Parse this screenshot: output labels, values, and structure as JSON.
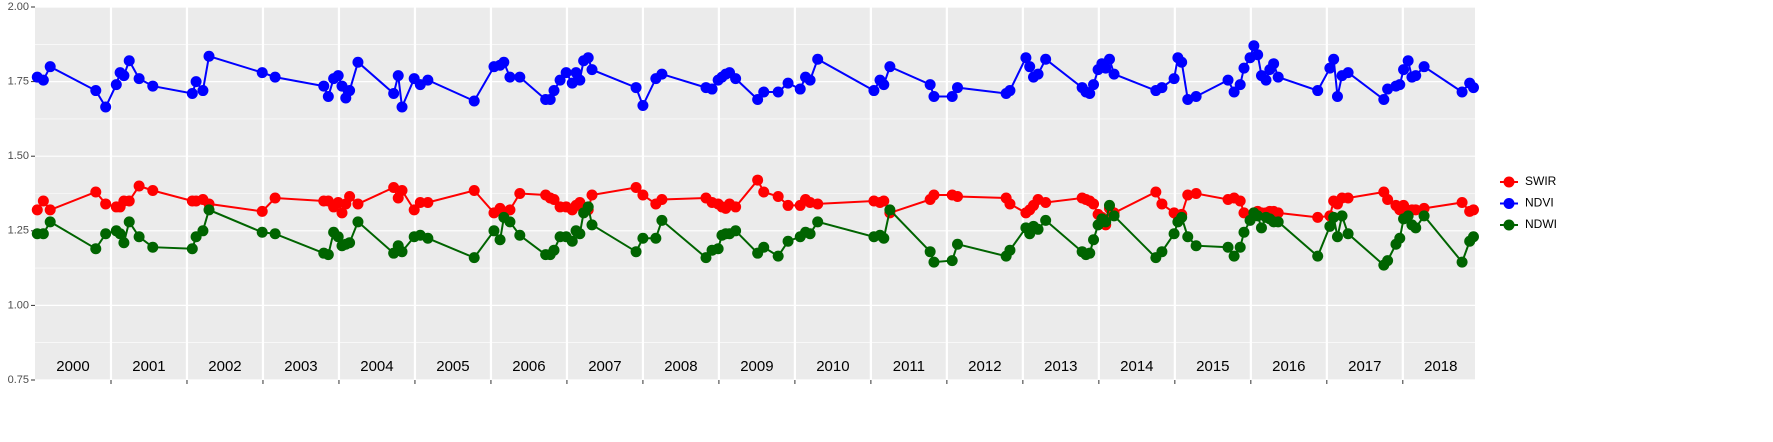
{
  "chart_data": {
    "type": "line",
    "x": [
      2000.03,
      2000.11,
      2000.2,
      2000.8,
      2000.93,
      2001.07,
      2001.12,
      2001.17,
      2001.24,
      2001.37,
      2001.55,
      2002.07,
      2002.12,
      2002.21,
      2002.29,
      2002.99,
      2003.16,
      2003.8,
      2003.86,
      2003.93,
      2003.99,
      2004.04,
      2004.09,
      2004.14,
      2004.25,
      2004.72,
      2004.78,
      2004.83,
      2004.99,
      2005.07,
      2005.17,
      2005.78,
      2006.04,
      2006.12,
      2006.17,
      2006.25,
      2006.38,
      2006.72,
      2006.78,
      2006.83,
      2006.91,
      2006.99,
      2007.07,
      2007.12,
      2007.17,
      2007.22,
      2007.28,
      2007.33,
      2007.91,
      2008.0,
      2008.17,
      2008.25,
      2008.83,
      2008.91,
      2008.99,
      2009.04,
      2009.09,
      2009.14,
      2009.22,
      2009.51,
      2009.59,
      2009.78,
      2009.91,
      2010.07,
      2010.14,
      2010.2,
      2010.3,
      2011.04,
      2011.12,
      2011.17,
      2011.25,
      2011.78,
      2011.83,
      2012.07,
      2012.14,
      2012.78,
      2012.83,
      2013.04,
      2013.09,
      2013.14,
      2013.2,
      2013.3,
      2013.78,
      2013.83,
      2013.88,
      2013.93,
      2013.99,
      2014.04,
      2014.09,
      2014.14,
      2014.2,
      2014.75,
      2014.83,
      2014.99,
      2015.04,
      2015.09,
      2015.17,
      2015.28,
      2015.7,
      2015.78,
      2015.86,
      2015.91,
      2015.99,
      2016.04,
      2016.09,
      2016.14,
      2016.2,
      2016.25,
      2016.3,
      2016.36,
      2016.88,
      2017.04,
      2017.09,
      2017.14,
      2017.2,
      2017.28,
      2017.75,
      2017.8,
      2017.91,
      2017.96,
      2018.01,
      2018.07,
      2018.12,
      2018.17,
      2018.28,
      2018.78,
      2018.88,
      2018.93
    ],
    "series": [
      {
        "name": "SWIR",
        "color": "#ff0000",
        "values": [
          1.32,
          1.35,
          1.32,
          1.38,
          1.34,
          1.33,
          1.33,
          1.35,
          1.35,
          1.4,
          1.385,
          1.35,
          1.35,
          1.355,
          1.34,
          1.315,
          1.36,
          1.35,
          1.35,
          1.33,
          1.345,
          1.31,
          1.34,
          1.365,
          1.34,
          1.395,
          1.36,
          1.385,
          1.32,
          1.345,
          1.345,
          1.385,
          1.31,
          1.325,
          1.305,
          1.32,
          1.375,
          1.37,
          1.36,
          1.355,
          1.33,
          1.33,
          1.32,
          1.335,
          1.345,
          1.32,
          1.32,
          1.37,
          1.395,
          1.37,
          1.34,
          1.355,
          1.36,
          1.345,
          1.34,
          1.33,
          1.325,
          1.34,
          1.33,
          1.42,
          1.38,
          1.365,
          1.335,
          1.335,
          1.355,
          1.345,
          1.34,
          1.35,
          1.345,
          1.35,
          1.31,
          1.355,
          1.37,
          1.37,
          1.365,
          1.36,
          1.34,
          1.31,
          1.32,
          1.335,
          1.355,
          1.345,
          1.36,
          1.355,
          1.35,
          1.34,
          1.305,
          1.295,
          1.27,
          1.325,
          1.31,
          1.38,
          1.34,
          1.31,
          1.3,
          1.305,
          1.37,
          1.375,
          1.355,
          1.36,
          1.35,
          1.31,
          1.3,
          1.31,
          1.315,
          1.31,
          1.31,
          1.315,
          1.315,
          1.31,
          1.295,
          1.3,
          1.35,
          1.34,
          1.36,
          1.36,
          1.38,
          1.355,
          1.335,
          1.32,
          1.335,
          1.31,
          1.32,
          1.32,
          1.325,
          1.345,
          1.315,
          1.32
        ]
      },
      {
        "name": "NDVI",
        "color": "#0000ff",
        "values": [
          1.765,
          1.755,
          1.8,
          1.72,
          1.665,
          1.74,
          1.78,
          1.77,
          1.82,
          1.76,
          1.735,
          1.71,
          1.75,
          1.72,
          1.835,
          1.78,
          1.765,
          1.735,
          1.7,
          1.76,
          1.77,
          1.735,
          1.695,
          1.72,
          1.815,
          1.71,
          1.77,
          1.665,
          1.76,
          1.74,
          1.755,
          1.685,
          1.8,
          1.805,
          1.815,
          1.765,
          1.765,
          1.69,
          1.69,
          1.72,
          1.755,
          1.78,
          1.745,
          1.78,
          1.755,
          1.82,
          1.83,
          1.79,
          1.73,
          1.67,
          1.76,
          1.775,
          1.73,
          1.725,
          1.755,
          1.765,
          1.775,
          1.78,
          1.76,
          1.69,
          1.715,
          1.715,
          1.745,
          1.725,
          1.765,
          1.755,
          1.825,
          1.72,
          1.755,
          1.74,
          1.8,
          1.74,
          1.7,
          1.7,
          1.73,
          1.71,
          1.72,
          1.83,
          1.8,
          1.765,
          1.775,
          1.825,
          1.73,
          1.715,
          1.71,
          1.74,
          1.79,
          1.81,
          1.795,
          1.825,
          1.775,
          1.72,
          1.73,
          1.76,
          1.83,
          1.815,
          1.69,
          1.7,
          1.755,
          1.715,
          1.74,
          1.795,
          1.83,
          1.87,
          1.84,
          1.77,
          1.755,
          1.79,
          1.81,
          1.765,
          1.72,
          1.795,
          1.825,
          1.7,
          1.77,
          1.78,
          1.69,
          1.725,
          1.735,
          1.74,
          1.79,
          1.82,
          1.765,
          1.77,
          1.8,
          1.715,
          1.745,
          1.73
        ]
      },
      {
        "name": "NDWI",
        "color": "#006400",
        "values": [
          1.24,
          1.24,
          1.28,
          1.19,
          1.24,
          1.25,
          1.24,
          1.21,
          1.28,
          1.23,
          1.195,
          1.19,
          1.23,
          1.25,
          1.32,
          1.245,
          1.24,
          1.175,
          1.17,
          1.245,
          1.23,
          1.2,
          1.205,
          1.21,
          1.28,
          1.175,
          1.2,
          1.18,
          1.23,
          1.235,
          1.225,
          1.16,
          1.25,
          1.22,
          1.295,
          1.28,
          1.235,
          1.17,
          1.17,
          1.185,
          1.23,
          1.23,
          1.215,
          1.25,
          1.24,
          1.31,
          1.33,
          1.27,
          1.18,
          1.225,
          1.225,
          1.285,
          1.16,
          1.185,
          1.19,
          1.235,
          1.24,
          1.24,
          1.25,
          1.175,
          1.195,
          1.165,
          1.215,
          1.23,
          1.245,
          1.24,
          1.28,
          1.23,
          1.235,
          1.225,
          1.32,
          1.18,
          1.145,
          1.15,
          1.205,
          1.165,
          1.185,
          1.26,
          1.24,
          1.265,
          1.255,
          1.285,
          1.18,
          1.17,
          1.175,
          1.22,
          1.27,
          1.29,
          1.28,
          1.335,
          1.3,
          1.16,
          1.18,
          1.24,
          1.28,
          1.295,
          1.23,
          1.2,
          1.195,
          1.165,
          1.195,
          1.245,
          1.285,
          1.31,
          1.3,
          1.26,
          1.295,
          1.29,
          1.28,
          1.28,
          1.165,
          1.265,
          1.295,
          1.23,
          1.3,
          1.24,
          1.135,
          1.15,
          1.205,
          1.225,
          1.29,
          1.3,
          1.27,
          1.26,
          1.3,
          1.145,
          1.215,
          1.23
        ]
      }
    ],
    "xlim": [
      2000,
      2018.95
    ],
    "xgrid": [
      2001,
      2002,
      2003,
      2004,
      2005,
      2006,
      2007,
      2008,
      2009,
      2010,
      2011,
      2012,
      2013,
      2014,
      2015,
      2016,
      2017,
      2018
    ],
    "year_labels": [
      {
        "value": 2000.5,
        "label": "2000"
      },
      {
        "value": 2001.5,
        "label": "2001"
      },
      {
        "value": 2002.5,
        "label": "2002"
      },
      {
        "value": 2003.5,
        "label": "2003"
      },
      {
        "value": 2004.5,
        "label": "2004"
      },
      {
        "value": 2005.5,
        "label": "2005"
      },
      {
        "value": 2006.5,
        "label": "2006"
      },
      {
        "value": 2007.5,
        "label": "2007"
      },
      {
        "value": 2008.5,
        "label": "2008"
      },
      {
        "value": 2009.5,
        "label": "2009"
      },
      {
        "value": 2010.5,
        "label": "2010"
      },
      {
        "value": 2011.5,
        "label": "2011"
      },
      {
        "value": 2012.5,
        "label": "2012"
      },
      {
        "value": 2013.5,
        "label": "2013"
      },
      {
        "value": 2014.5,
        "label": "2014"
      },
      {
        "value": 2015.5,
        "label": "2015"
      },
      {
        "value": 2016.5,
        "label": "2016"
      },
      {
        "value": 2017.5,
        "label": "2017"
      },
      {
        "value": 2018.5,
        "label": "2018"
      }
    ],
    "ylim": [
      0.75,
      2.0
    ],
    "yticks": [
      0.75,
      {
        "value": 1.0,
        "label": "1.00"
      },
      1.25,
      {
        "value": 1.5,
        "label": "1.50"
      },
      1.75,
      {
        "value": 2.0,
        "label": "2.00"
      }
    ],
    "yminor": [
      0.875,
      1.125,
      1.375,
      1.625,
      1.875
    ],
    "grid": true,
    "legend": "right"
  }
}
